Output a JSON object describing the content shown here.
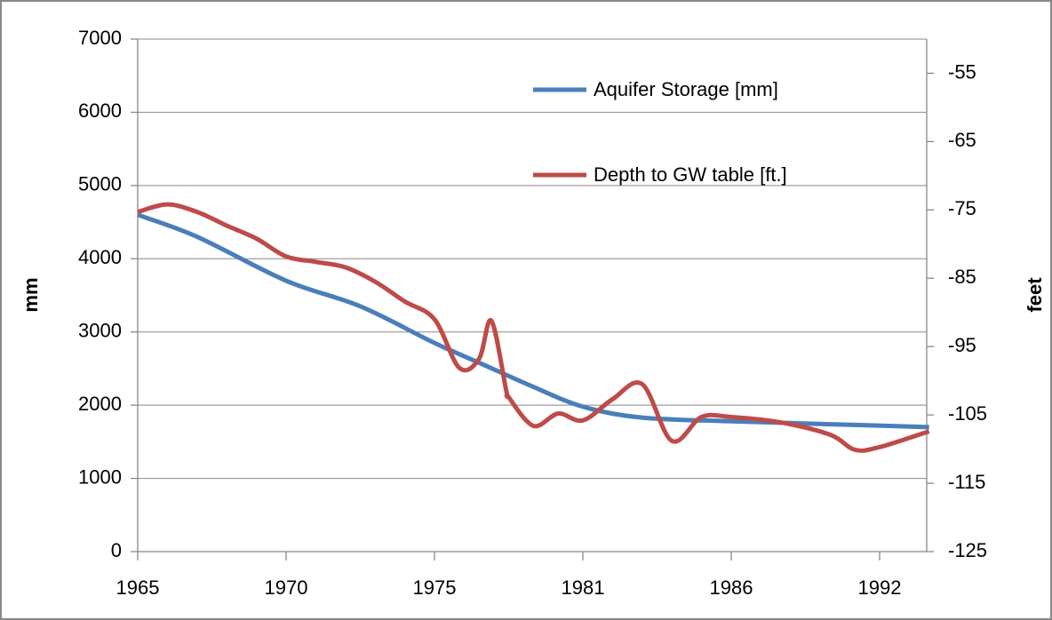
{
  "chart_data": {
    "type": "line",
    "ylabel": "mm",
    "y2label": "feet",
    "xlim": [
      1965,
      1994
    ],
    "xticks": [
      1965,
      1970,
      1975,
      1981,
      1986,
      1992
    ],
    "ylim": [
      0,
      7000
    ],
    "yticks": [
      0,
      1000,
      2000,
      3000,
      4000,
      5000,
      6000,
      7000
    ],
    "y2lim": [
      -125,
      -50
    ],
    "y2ticks": [
      -125,
      -115,
      -105,
      -95,
      -85,
      -75,
      -65,
      -55
    ],
    "grid": true,
    "legend": "upper right",
    "series": [
      {
        "name": "Aquifer Storage [mm]",
        "color": "#4a7ebb",
        "x": [
          1965,
          1967,
          1970,
          1972.5,
          1975,
          1977,
          1979,
          1981,
          1983,
          1986,
          1990,
          1994
        ],
        "values": [
          4600,
          4300,
          3700,
          3350,
          2850,
          2550,
          2250,
          1980,
          1830,
          1780,
          1740,
          1700
        ]
      },
      {
        "name": "Depth to GW table [ft.]",
        "color": "#be4b48",
        "axis": "y2",
        "x": [
          1965,
          1966,
          1967,
          1968,
          1969,
          1970,
          1971,
          1972,
          1973,
          1974,
          1975,
          1976,
          1976.8,
          1977.3,
          1977.9,
          1978,
          1979,
          1980,
          1981,
          1982,
          1983,
          1984,
          1985,
          1986,
          1988,
          1990,
          1991,
          1992,
          1994
        ],
        "values": [
          -75.3,
          -74.2,
          -75.3,
          -77.3,
          -79.2,
          -81.8,
          -82.6,
          -83.4,
          -85.5,
          -88.4,
          -91,
          -98.1,
          -96.8,
          -91.2,
          -101.4,
          -102.4,
          -106.6,
          -104.8,
          -105.8,
          -102.7,
          -100.5,
          -108.8,
          -105.3,
          -105.3,
          -106.1,
          -107.9,
          -110.1,
          -109.7,
          -107.4
        ]
      }
    ]
  }
}
